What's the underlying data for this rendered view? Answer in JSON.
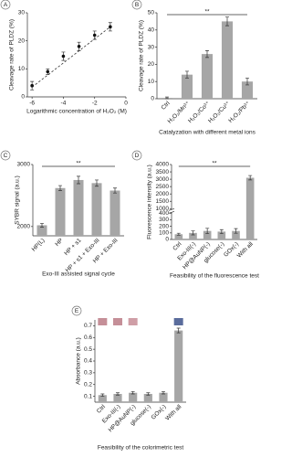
{
  "chart_data": [
    {
      "type": "scatter",
      "panel": "A",
      "x_label": "Logarithmic concentration of H₂O₂ (M)",
      "y_label": "Cleavage rate of PLDZ (%)",
      "x": [
        -6,
        -5,
        -4,
        -3,
        -2,
        -1
      ],
      "values": [
        4,
        9,
        14.5,
        18,
        22,
        25
      ],
      "errors": [
        1.5,
        1,
        1.5,
        1.5,
        1.5,
        1.5
      ],
      "trendline": {
        "x": [
          -6,
          -1
        ],
        "y": [
          3.5,
          25
        ]
      },
      "color": "#111111",
      "xlim": [
        -6.3,
        0
      ],
      "xticks": [
        -6,
        -4,
        -2,
        0
      ],
      "ylim": [
        0,
        30
      ],
      "yticks": [
        0,
        10,
        20,
        30
      ]
    },
    {
      "type": "bar",
      "panel": "B",
      "x_label": "Catalyzation with different metal ions",
      "y_label": "Cleavage rate of PLDZ (%)",
      "categories": [
        "Ctrl",
        "H₂O₂/Mn²⁺",
        "H₂O₂/Co²⁺",
        "H₂O₂/Cu²⁺",
        "H₂O₂/Pb²⁺"
      ],
      "values": [
        0.5,
        14,
        26,
        45,
        10
      ],
      "errors": [
        0.5,
        2,
        2,
        2.5,
        2
      ],
      "annotation": "**",
      "color": "#a6a6a6",
      "ylim": [
        0,
        50
      ],
      "yticks": [
        0,
        10,
        20,
        30,
        40,
        50
      ]
    },
    {
      "type": "bar",
      "panel": "C",
      "x_label": "Exo-III assisted signal cycle",
      "y_label": "SYBR signal (a.u.)",
      "categories": [
        "HP(L)",
        "HP",
        "HP + s1",
        "HP + s1 + Exo-III",
        "HP + Exo-III"
      ],
      "values": [
        2020,
        2620,
        2750,
        2700,
        2580
      ],
      "errors": [
        30,
        40,
        60,
        50,
        40
      ],
      "annotation": "**",
      "color": "#a6a6a6",
      "ylim": [
        1850,
        3000
      ],
      "yticks": [
        2000,
        3000
      ]
    },
    {
      "type": "bar",
      "panel": "D",
      "x_label": "Feasibility of the fluorescence test",
      "y_label": "Fluorescence intensity (a.u.)",
      "categories": [
        "Ctrl",
        "Exo-III(-)",
        "HP@AuNP(-)",
        "glucose(-)",
        "GOx(-)",
        "With all"
      ],
      "values": [
        80,
        100,
        130,
        120,
        130,
        3100
      ],
      "errors": [
        15,
        30,
        40,
        30,
        35,
        150
      ],
      "annotation": "**",
      "color": "#a6a6a6",
      "ylim": [
        0,
        4000
      ],
      "ybreak": [
        400,
        1000
      ],
      "yticks": [
        0,
        100,
        200,
        300,
        400,
        1000,
        1500,
        2000,
        2500,
        3000,
        3500,
        4000
      ]
    },
    {
      "type": "bar",
      "panel": "E",
      "x_label": "Feasibility of the colorimetric test",
      "y_label": "Absorbance (a.u.)",
      "categories": [
        "Ctrl",
        "Exo-III(-)",
        "HP@AuNP(-)",
        "glucose(-)",
        "GOx(-)",
        "With all"
      ],
      "values": [
        0.11,
        0.12,
        0.13,
        0.12,
        0.13,
        0.66
      ],
      "errors": [
        0.01,
        0.01,
        0.01,
        0.01,
        0.01,
        0.02
      ],
      "swatch_colors": [
        "#c58f98",
        "#c58f98",
        "#cf9ea6",
        null,
        null,
        "#5a6c9c"
      ],
      "color": "#a6a6a6",
      "ylim": [
        0.05,
        0.75
      ],
      "yticks": [
        0.1,
        0.2,
        0.3,
        0.4,
        0.5,
        0.6,
        0.7
      ]
    }
  ]
}
